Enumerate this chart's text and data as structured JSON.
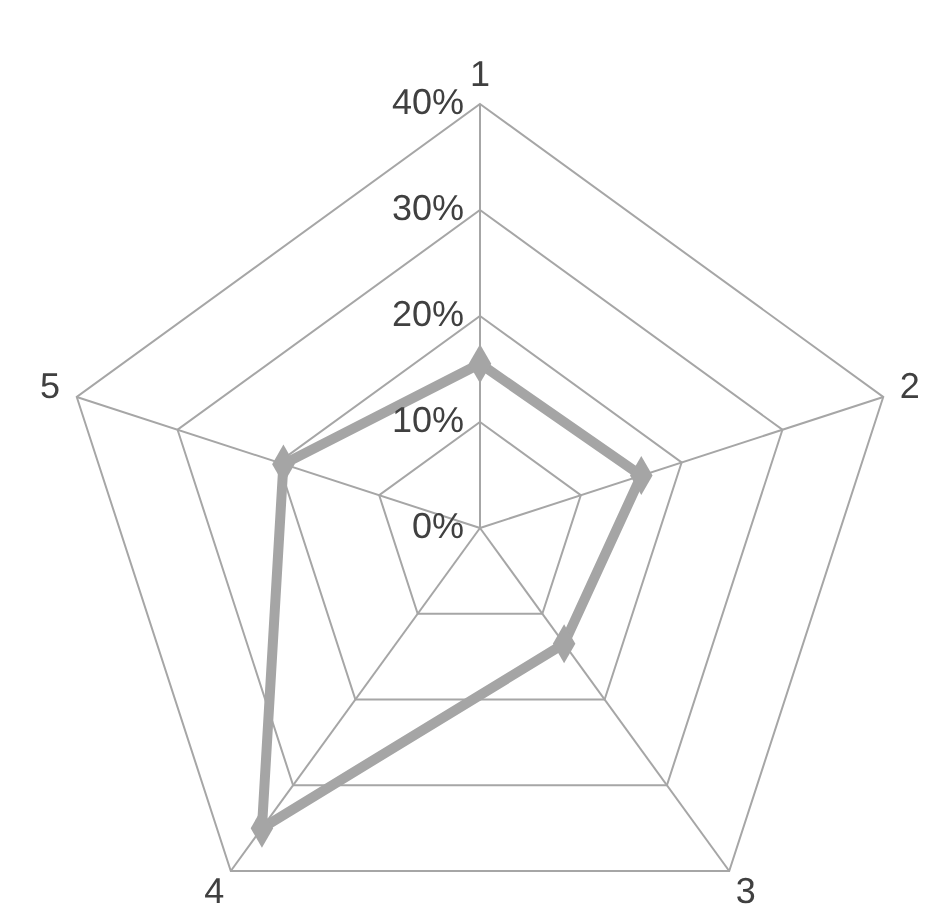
{
  "chart_data": {
    "type": "radar",
    "categories": [
      "1",
      "2",
      "3",
      "4",
      "5"
    ],
    "series": [
      {
        "color": "#a5a5a5",
        "values": [
          15.5,
          16,
          13.5,
          35,
          19.5
        ]
      }
    ],
    "ylim": [
      0,
      40
    ],
    "yticks": [
      {
        "value": 0,
        "label": "0%"
      },
      {
        "value": 10,
        "label": "10%"
      },
      {
        "value": 20,
        "label": "20%"
      },
      {
        "value": 30,
        "label": "30%"
      },
      {
        "value": 40,
        "label": "40%"
      }
    ],
    "marker": "diamond",
    "grid": true
  }
}
